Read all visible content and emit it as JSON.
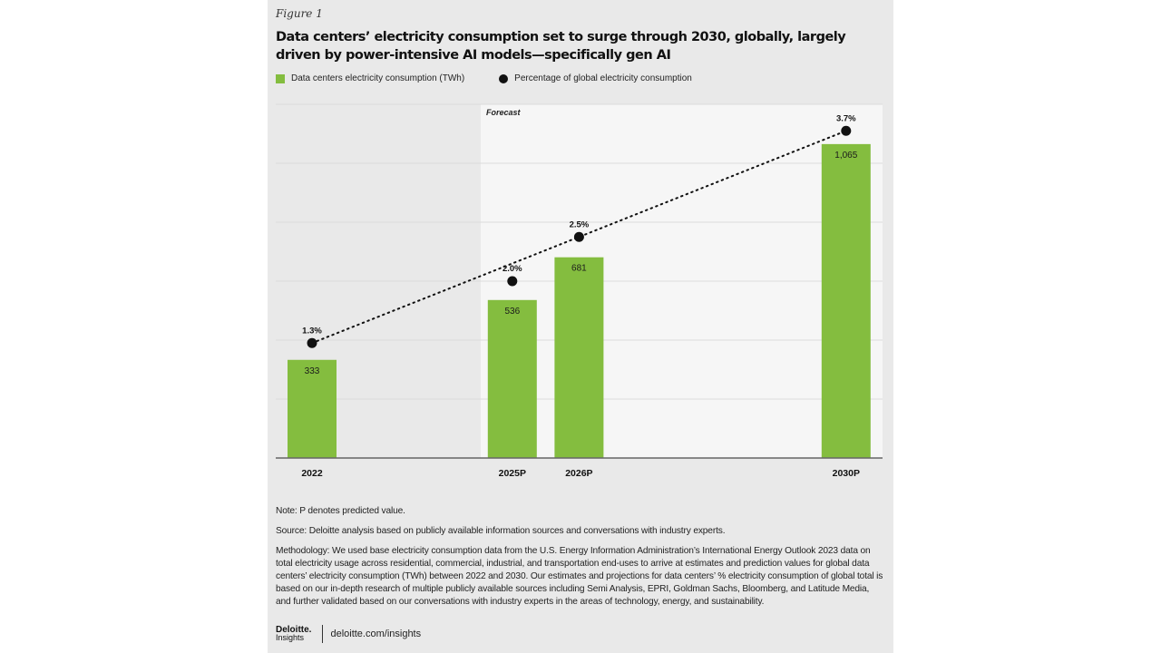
{
  "figure_label": "Figure 1",
  "chart_data": {
    "type": "bar",
    "title": "Data centers’ electricity consumption set to surge through 2030, globally, largely driven by power-intensive AI models—specifically gen AI",
    "categories": [
      "2022",
      "2025P",
      "2026P",
      "2030P"
    ],
    "series": [
      {
        "name": "Data centers electricity consumption (TWh)",
        "type": "bar",
        "color": "#84bd3f",
        "values": [
          333,
          536,
          681,
          1065
        ],
        "labels": [
          "333",
          "536",
          "681",
          "1,065"
        ]
      },
      {
        "name": "Percentage of global electricity consumption",
        "type": "scatter",
        "color": "#111111",
        "values": [
          1.3,
          2.0,
          2.5,
          3.7
        ],
        "labels": [
          "1.3%",
          "2.0%",
          "2.5%",
          "3.7%"
        ]
      }
    ],
    "category_years": [
      2022,
      2025,
      2026,
      2030
    ],
    "ylim": [
      0,
      1200
    ],
    "pct_ylim": [
      0,
      4.0
    ],
    "y_gridlines": [
      200,
      400,
      600,
      800,
      1000,
      1200
    ],
    "forecast_label": "Forecast",
    "legend_position": "top-left"
  },
  "notes": {
    "note": "Note: P denotes predicted value.",
    "source": "Source: Deloitte analysis based on publicly available information sources and conversations with industry experts.",
    "methodology": "Methodology: We used base electricity consumption data from the U.S. Energy Information Administration’s International Energy Outlook 2023 data on total electricity usage across residential, commercial, industrial, and transportation end-uses to arrive at estimates and prediction values for global data centers’ electricity consumption (TWh) between 2022 and 2030. Our estimates and projections for data centers’ % electricity consumption of global total is based on our in-depth research of multiple publicly available sources including Semi Analysis, EPRI, Goldman Sachs, Bloomberg, and Latitude Media, and further validated based on our conversations with industry experts in the areas of technology, energy, and sustainability."
  },
  "footer": {
    "logo_line1": "Deloitte.",
    "logo_line2": "Insights",
    "url": "deloitte.com/insights"
  }
}
